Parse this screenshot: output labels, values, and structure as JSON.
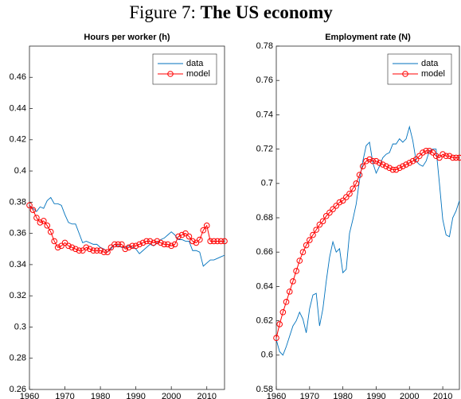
{
  "figure_title": {
    "label": "Figure 7:",
    "text": "The US economy"
  },
  "chart_data": [
    {
      "type": "line",
      "title": "Hours per worker (h)",
      "x": [
        1960,
        1961,
        1962,
        1963,
        1964,
        1965,
        1966,
        1967,
        1968,
        1969,
        1970,
        1971,
        1972,
        1973,
        1974,
        1975,
        1976,
        1977,
        1978,
        1979,
        1980,
        1981,
        1982,
        1983,
        1984,
        1985,
        1986,
        1987,
        1988,
        1989,
        1990,
        1991,
        1992,
        1993,
        1994,
        1995,
        1996,
        1997,
        1998,
        1999,
        2000,
        2001,
        2002,
        2003,
        2004,
        2005,
        2006,
        2007,
        2008,
        2009,
        2010,
        2011,
        2012,
        2013,
        2014,
        2015
      ],
      "series": [
        {
          "name": "data",
          "color": "#0072bd",
          "marker": false,
          "values": [
            0.378,
            0.376,
            0.374,
            0.377,
            0.376,
            0.381,
            0.383,
            0.379,
            0.379,
            0.378,
            0.372,
            0.367,
            0.366,
            0.366,
            0.36,
            0.354,
            0.355,
            0.354,
            0.353,
            0.353,
            0.351,
            0.35,
            0.348,
            0.35,
            0.353,
            0.352,
            0.351,
            0.351,
            0.352,
            0.351,
            0.35,
            0.347,
            0.349,
            0.351,
            0.353,
            0.352,
            0.354,
            0.356,
            0.357,
            0.359,
            0.361,
            0.359,
            0.356,
            0.356,
            0.355,
            0.355,
            0.349,
            0.349,
            0.348,
            0.339,
            0.341,
            0.343,
            0.343,
            0.344,
            0.345,
            0.346
          ]
        },
        {
          "name": "model",
          "color": "#ff0000",
          "marker": true,
          "values": [
            0.378,
            0.375,
            0.37,
            0.367,
            0.368,
            0.365,
            0.361,
            0.355,
            0.351,
            0.352,
            0.354,
            0.352,
            0.351,
            0.35,
            0.349,
            0.349,
            0.351,
            0.35,
            0.349,
            0.349,
            0.349,
            0.348,
            0.348,
            0.351,
            0.353,
            0.353,
            0.353,
            0.35,
            0.351,
            0.352,
            0.352,
            0.353,
            0.354,
            0.355,
            0.355,
            0.354,
            0.355,
            0.354,
            0.353,
            0.353,
            0.352,
            0.353,
            0.358,
            0.359,
            0.36,
            0.358,
            0.355,
            0.354,
            0.356,
            0.362,
            0.365,
            0.355,
            0.355,
            0.355,
            0.355,
            0.355
          ]
        }
      ],
      "xlim": [
        1960,
        2015
      ],
      "xticks": [
        1960,
        1970,
        1980,
        1990,
        2000,
        2010
      ],
      "ylim": [
        0.26,
        0.48
      ],
      "yticks": [
        0.26,
        0.28,
        0.3,
        0.32,
        0.34,
        0.36,
        0.38,
        0.4,
        0.42,
        0.44,
        0.46
      ],
      "grid": false,
      "legend": "northeast"
    },
    {
      "type": "line",
      "title": "Employment rate (N)",
      "x": [
        1960,
        1961,
        1962,
        1963,
        1964,
        1965,
        1966,
        1967,
        1968,
        1969,
        1970,
        1971,
        1972,
        1973,
        1974,
        1975,
        1976,
        1977,
        1978,
        1979,
        1980,
        1981,
        1982,
        1983,
        1984,
        1985,
        1986,
        1987,
        1988,
        1989,
        1990,
        1991,
        1992,
        1993,
        1994,
        1995,
        1996,
        1997,
        1998,
        1999,
        2000,
        2001,
        2002,
        2003,
        2004,
        2005,
        2006,
        2007,
        2008,
        2009,
        2010,
        2011,
        2012,
        2013,
        2014,
        2015
      ],
      "series": [
        {
          "name": "data",
          "color": "#0072bd",
          "marker": false,
          "values": [
            0.609,
            0.602,
            0.6,
            0.605,
            0.611,
            0.617,
            0.62,
            0.625,
            0.621,
            0.613,
            0.627,
            0.635,
            0.636,
            0.617,
            0.627,
            0.643,
            0.657,
            0.666,
            0.66,
            0.662,
            0.648,
            0.65,
            0.671,
            0.679,
            0.688,
            0.702,
            0.713,
            0.722,
            0.724,
            0.712,
            0.706,
            0.71,
            0.715,
            0.717,
            0.718,
            0.723,
            0.723,
            0.726,
            0.724,
            0.726,
            0.733,
            0.725,
            0.713,
            0.711,
            0.71,
            0.713,
            0.719,
            0.72,
            0.72,
            0.7,
            0.679,
            0.67,
            0.669,
            0.68,
            0.684,
            0.69
          ]
        },
        {
          "name": "model",
          "color": "#ff0000",
          "marker": true,
          "values": [
            0.61,
            0.618,
            0.625,
            0.631,
            0.637,
            0.643,
            0.649,
            0.655,
            0.66,
            0.664,
            0.667,
            0.67,
            0.673,
            0.676,
            0.678,
            0.681,
            0.683,
            0.685,
            0.687,
            0.689,
            0.69,
            0.692,
            0.694,
            0.697,
            0.7,
            0.705,
            0.71,
            0.713,
            0.714,
            0.713,
            0.713,
            0.712,
            0.711,
            0.71,
            0.709,
            0.708,
            0.708,
            0.709,
            0.71,
            0.711,
            0.712,
            0.713,
            0.714,
            0.716,
            0.718,
            0.719,
            0.719,
            0.718,
            0.716,
            0.715,
            0.717,
            0.716,
            0.716,
            0.715,
            0.715,
            0.715
          ]
        }
      ],
      "xlim": [
        1960,
        2015
      ],
      "xticks": [
        1960,
        1970,
        1980,
        1990,
        2000,
        2010
      ],
      "ylim": [
        0.58,
        0.78
      ],
      "yticks": [
        0.58,
        0.6,
        0.62,
        0.64,
        0.66,
        0.68,
        0.7,
        0.72,
        0.74,
        0.76,
        0.78
      ],
      "grid": false,
      "legend": "northeast"
    }
  ]
}
